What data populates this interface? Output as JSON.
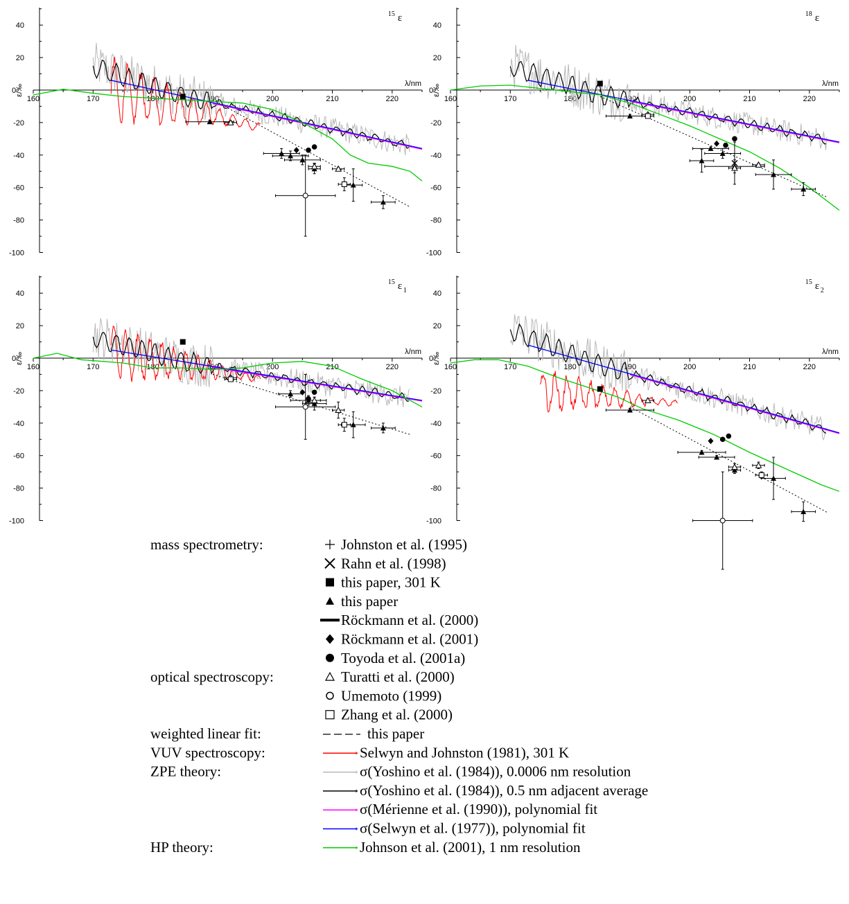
{
  "chart_data": [
    {
      "type": "scatter",
      "panel": "15ε",
      "panel_label": {
        "sup": "15",
        "main": "ε",
        "sub": ""
      },
      "ylabel": "ε/‰",
      "xlabel": "λ/nm",
      "xlim": [
        160,
        225
      ],
      "ylim": [
        -100,
        50
      ],
      "xticks": [
        160,
        170,
        180,
        190,
        200,
        210,
        220
      ],
      "yticks": [
        40,
        20,
        0,
        -20,
        -40,
        -60,
        -80,
        -100
      ],
      "lines": {
        "fit": {
          "x0": 173,
          "y0": 6,
          "x1": 225,
          "y1": -36
        },
        "weighted": {
          "x0": 190,
          "y0": -6,
          "x1": 223,
          "y1": -72
        },
        "hp": [
          [
            160,
            -3
          ],
          [
            165,
            0.5
          ],
          [
            170,
            -2
          ],
          [
            175,
            -4
          ],
          [
            180,
            -5
          ],
          [
            185,
            -6
          ],
          [
            190,
            -7
          ],
          [
            195,
            -8
          ],
          [
            200,
            -12
          ],
          [
            205,
            -20
          ],
          [
            210,
            -30
          ],
          [
            213,
            -40
          ],
          [
            216,
            -45
          ],
          [
            220,
            -47
          ],
          [
            223,
            -50
          ],
          [
            225,
            -56
          ]
        ],
        "selwyn_johnston": {
          "x0": 173,
          "x1": 198,
          "start": 0,
          "end": -23,
          "amp": 18,
          "period": 2.2
        }
      },
      "points": {
        "this_paper": [
          {
            "x": 189.5,
            "y": -19.5,
            "xerr": 4,
            "yerr": 1
          },
          {
            "x": 201.5,
            "y": -39,
            "xerr": 3,
            "yerr": 3
          },
          {
            "x": 203,
            "y": -40.5,
            "xerr": 3,
            "yerr": 3
          },
          {
            "x": 205,
            "y": -43,
            "xerr": 3,
            "yerr": 3
          },
          {
            "x": 207,
            "y": -48.5,
            "xerr": 1,
            "yerr": 3
          },
          {
            "x": 213.5,
            "y": -58.5,
            "xerr": 1.5,
            "yerr": 10
          },
          {
            "x": 218.5,
            "y": -69,
            "xerr": 2,
            "yerr": 4
          }
        ],
        "this_paper_301K": [
          {
            "x": 185,
            "y": -4
          }
        ],
        "rockmann2001": [
          {
            "x": 204,
            "y": -37
          }
        ],
        "toyoda": [
          {
            "x": 206,
            "y": -37
          },
          {
            "x": 207,
            "y": -35
          }
        ],
        "turatti": [
          {
            "x": 193,
            "y": -20,
            "xerr": 1,
            "yerr": 1
          },
          {
            "x": 207,
            "y": -47,
            "xerr": 1,
            "yerr": 2
          },
          {
            "x": 211,
            "y": -48.5,
            "xerr": 1,
            "yerr": 1
          }
        ],
        "umemoto": [
          {
            "x": 205.5,
            "y": -65,
            "xerr": 5,
            "yerr": 25
          }
        ],
        "zhang": [
          {
            "x": 212,
            "y": -58,
            "xerr": 1,
            "yerr": 4
          }
        ]
      }
    },
    {
      "type": "scatter",
      "panel": "18ε",
      "panel_label": {
        "sup": "18",
        "main": "ε",
        "sub": ""
      },
      "ylabel": "ε/‰",
      "xlabel": "λ/nm",
      "xlim": [
        160,
        225
      ],
      "ylim": [
        -100,
        50
      ],
      "xticks": [
        160,
        170,
        180,
        190,
        200,
        210,
        220
      ],
      "yticks": [
        40,
        20,
        0,
        -20,
        -40,
        -60,
        -80,
        -100
      ],
      "lines": {
        "fit": {
          "x0": 173,
          "y0": 6,
          "x1": 225,
          "y1": -32
        },
        "weighted": {
          "x0": 185,
          "y0": -4,
          "x1": 223,
          "y1": -66
        },
        "hp": [
          [
            160,
            0
          ],
          [
            165,
            2.5
          ],
          [
            170,
            3
          ],
          [
            175,
            1
          ],
          [
            180,
            -1
          ],
          [
            185,
            -3
          ],
          [
            190,
            -8
          ],
          [
            195,
            -15
          ],
          [
            200,
            -22
          ],
          [
            205,
            -30
          ],
          [
            210,
            -38
          ],
          [
            215,
            -48
          ],
          [
            220,
            -60
          ],
          [
            225,
            -74
          ]
        ],
        "selwyn_johnston": null
      },
      "points": {
        "this_paper": [
          {
            "x": 190,
            "y": -16,
            "xerr": 4,
            "yerr": 1
          },
          {
            "x": 202,
            "y": -43.5,
            "xerr": 2,
            "yerr": 7
          },
          {
            "x": 203.5,
            "y": -36,
            "xerr": 3,
            "yerr": 1
          },
          {
            "x": 205.5,
            "y": -39,
            "xerr": 3,
            "yerr": 3
          },
          {
            "x": 207.5,
            "y": -47,
            "xerr": 5,
            "yerr": 4
          },
          {
            "x": 214,
            "y": -52,
            "xerr": 3,
            "yerr": 9
          },
          {
            "x": 219,
            "y": -61,
            "xerr": 2,
            "yerr": 4
          }
        ],
        "this_paper_301K": [
          {
            "x": 185,
            "y": 4
          }
        ],
        "rockmann2001": [
          {
            "x": 204.5,
            "y": -33
          }
        ],
        "toyoda": [
          {
            "x": 206,
            "y": -34
          },
          {
            "x": 207.5,
            "y": -30
          }
        ],
        "turatti": [
          {
            "x": 193,
            "y": -15,
            "xerr": 1,
            "yerr": 1
          },
          {
            "x": 207.5,
            "y": -48,
            "xerr": 1,
            "yerr": 1
          },
          {
            "x": 211.5,
            "y": -46,
            "xerr": 1,
            "yerr": 1
          }
        ],
        "rahn": [
          {
            "x": 207.5,
            "y": -45,
            "yerr": 13
          }
        ],
        "zhang": [
          {
            "x": 193,
            "y": -16,
            "xerr": 1,
            "yerr": 1
          }
        ]
      }
    },
    {
      "type": "scatter",
      "panel": "15ε1",
      "panel_label": {
        "sup": "15",
        "main": "ε",
        "sub": "1"
      },
      "ylabel": "ε/‰",
      "xlabel": "λ/nm",
      "xlim": [
        160,
        225
      ],
      "ylim": [
        -100,
        50
      ],
      "xticks": [
        160,
        170,
        180,
        190,
        200,
        210,
        220
      ],
      "yticks": [
        40,
        20,
        0,
        -20,
        -40,
        -60,
        -80,
        -100
      ],
      "lines": {
        "fit": {
          "x0": 173,
          "y0": 5,
          "x1": 225,
          "y1": -26
        },
        "weighted": {
          "x0": 190,
          "y0": -10,
          "x1": 223,
          "y1": -47
        },
        "hp": [
          [
            160,
            0
          ],
          [
            164,
            3
          ],
          [
            168,
            -1
          ],
          [
            175,
            -3
          ],
          [
            180,
            -6
          ],
          [
            185,
            -6
          ],
          [
            190,
            -7
          ],
          [
            195,
            -6
          ],
          [
            200,
            -3
          ],
          [
            205,
            -2
          ],
          [
            210,
            -5
          ],
          [
            215,
            -13
          ],
          [
            220,
            -20
          ],
          [
            225,
            -30
          ]
        ],
        "selwyn_johnston": {
          "x0": 173,
          "x1": 198,
          "start": 4,
          "end": -13,
          "amp": 16,
          "period": 2.0
        }
      },
      "points": {
        "this_paper": [
          {
            "x": 203,
            "y": -22,
            "xerr": 2,
            "yerr": 2
          },
          {
            "x": 206,
            "y": -26,
            "xerr": 3,
            "yerr": 3
          },
          {
            "x": 207,
            "y": -28,
            "xerr": 2,
            "yerr": 4
          },
          {
            "x": 213.5,
            "y": -41,
            "xerr": 2,
            "yerr": 8
          },
          {
            "x": 218.5,
            "y": -43,
            "xerr": 2,
            "yerr": 3
          }
        ],
        "this_paper_301K": [
          {
            "x": 185,
            "y": 10
          }
        ],
        "rockmann2001": [
          {
            "x": 205,
            "y": -21
          }
        ],
        "toyoda": [
          {
            "x": 206,
            "y": -25
          },
          {
            "x": 207,
            "y": -21
          }
        ],
        "turatti": [
          {
            "x": 193,
            "y": -12,
            "xerr": 1,
            "yerr": 1
          },
          {
            "x": 207,
            "y": -26,
            "xerr": 1,
            "yerr": 2
          },
          {
            "x": 211,
            "y": -32,
            "xerr": 1,
            "yerr": 5
          }
        ],
        "umemoto": [
          {
            "x": 205.5,
            "y": -30,
            "xerr": 5,
            "yerr": 20
          }
        ],
        "zhang": [
          {
            "x": 193,
            "y": -13,
            "xerr": 1,
            "yerr": 1
          },
          {
            "x": 212,
            "y": -41,
            "xerr": 1,
            "yerr": 4
          }
        ]
      }
    },
    {
      "type": "scatter",
      "panel": "15ε2",
      "panel_label": {
        "sup": "15",
        "main": "ε",
        "sub": "2"
      },
      "ylabel": "ε/‰",
      "xlabel": "λ/nm",
      "xlim": [
        160,
        225
      ],
      "ylim": [
        -100,
        50
      ],
      "xticks": [
        160,
        170,
        180,
        190,
        200,
        210,
        220
      ],
      "yticks": [
        40,
        20,
        0,
        -20,
        -40,
        -60,
        -80,
        -100
      ],
      "lines": {
        "fit": {
          "x0": 173,
          "y0": 8,
          "x1": 225,
          "y1": -46
        },
        "weighted": {
          "x0": 190,
          "y0": -30,
          "x1": 223,
          "y1": -95
        },
        "hp": [
          [
            160,
            -3
          ],
          [
            164,
            -1
          ],
          [
            168,
            -1
          ],
          [
            173,
            -5
          ],
          [
            178,
            -12
          ],
          [
            183,
            -18
          ],
          [
            188,
            -24
          ],
          [
            192,
            -31
          ],
          [
            198,
            -38
          ],
          [
            204,
            -47
          ],
          [
            210,
            -58
          ],
          [
            216,
            -68
          ],
          [
            222,
            -78
          ],
          [
            225,
            -82
          ]
        ],
        "selwyn_johnston": {
          "x0": 175,
          "x1": 198,
          "start": -20,
          "end": -28,
          "amp": 12,
          "period": 2.0
        }
      },
      "points": {
        "this_paper": [
          {
            "x": 190,
            "y": -32,
            "xerr": 4,
            "yerr": 1
          },
          {
            "x": 202,
            "y": -58,
            "xerr": 4,
            "yerr": 1
          },
          {
            "x": 204.5,
            "y": -61,
            "xerr": 3,
            "yerr": 1
          },
          {
            "x": 207.5,
            "y": -69,
            "xerr": 1,
            "yerr": 2
          },
          {
            "x": 214,
            "y": -74,
            "xerr": 2,
            "yerr": 13
          },
          {
            "x": 219,
            "y": -94.5,
            "xerr": 2,
            "yerr": 6
          }
        ],
        "this_paper_301K": [
          {
            "x": 185,
            "y": -19
          }
        ],
        "rockmann2001": [
          {
            "x": 203.5,
            "y": -51
          }
        ],
        "toyoda": [
          {
            "x": 205.5,
            "y": -50
          },
          {
            "x": 206.5,
            "y": -48
          }
        ],
        "turatti": [
          {
            "x": 193,
            "y": -26,
            "xerr": 1,
            "yerr": 1
          },
          {
            "x": 207.5,
            "y": -67,
            "xerr": 1,
            "yerr": 2
          },
          {
            "x": 211.5,
            "y": -66,
            "xerr": 1,
            "yerr": 2
          }
        ],
        "umemoto": [
          {
            "x": 205.5,
            "y": -100,
            "xerr": 5,
            "yerr": 30
          }
        ],
        "zhang": [
          {
            "x": 212,
            "y": -72,
            "xerr": 1,
            "yerr": 2
          }
        ]
      }
    }
  ],
  "colors": {
    "selwyn_johnston": "#ff0000",
    "yoshino_fine": "#b8b8b8",
    "yoshino_avg": "#000000",
    "merienne": "#ff00ff",
    "selwyn1977": "#0000ff",
    "johnson": "#00cc00"
  },
  "legend": {
    "groups": [
      {
        "category": "mass spectrometry:",
        "entries": [
          {
            "symbol": "plus-icon",
            "label": "Johnston et al. (1995)"
          },
          {
            "symbol": "cross-icon",
            "label": "Rahn et al. (1998)"
          },
          {
            "symbol": "filled-square-icon",
            "label": "this paper, 301 K"
          },
          {
            "symbol": "filled-triangle-icon",
            "label": "this paper"
          },
          {
            "symbol": "thick-bar-icon",
            "label": "Röckmann et al. (2000)"
          },
          {
            "symbol": "filled-diamond-icon",
            "label": "Röckmann et al. (2001)"
          },
          {
            "symbol": "filled-circle-icon",
            "label": "Toyoda et al. (2001a)"
          }
        ]
      },
      {
        "category": "optical spectroscopy:",
        "entries": [
          {
            "symbol": "open-triangle-icon",
            "label": "Turatti et al. (2000)"
          },
          {
            "symbol": "open-circle-icon",
            "label": "Umemoto (1999)"
          },
          {
            "symbol": "open-square-icon",
            "label": "Zhang et al. (2000)"
          }
        ]
      },
      {
        "category": "weighted linear fit:",
        "entries": [
          {
            "symbol": "dashed-line-icon",
            "label": "this paper"
          }
        ]
      },
      {
        "category": "VUV spectroscopy:",
        "entries": [
          {
            "symbol": "red-line-icon",
            "label": "Selwyn and Johnston (1981), 301 K"
          }
        ]
      },
      {
        "category": "ZPE theory:",
        "entries": [
          {
            "symbol": "grey-line-icon",
            "label": "σ(Yoshino et al. (1984)), 0.0006 nm resolution"
          },
          {
            "symbol": "black-line-icon",
            "label": "σ(Yoshino et al. (1984)), 0.5 nm adjacent average"
          },
          {
            "symbol": "magenta-line-icon",
            "label": "σ(Mérienne et al. (1990)), polynomial fit"
          },
          {
            "symbol": "blue-line-icon",
            "label": "σ(Selwyn et al. (1977)), polynomial fit"
          }
        ]
      },
      {
        "category": "HP theory:",
        "entries": [
          {
            "symbol": "green-line-icon",
            "label": "Johnson et al. (2001), 1 nm resolution"
          }
        ]
      }
    ]
  }
}
